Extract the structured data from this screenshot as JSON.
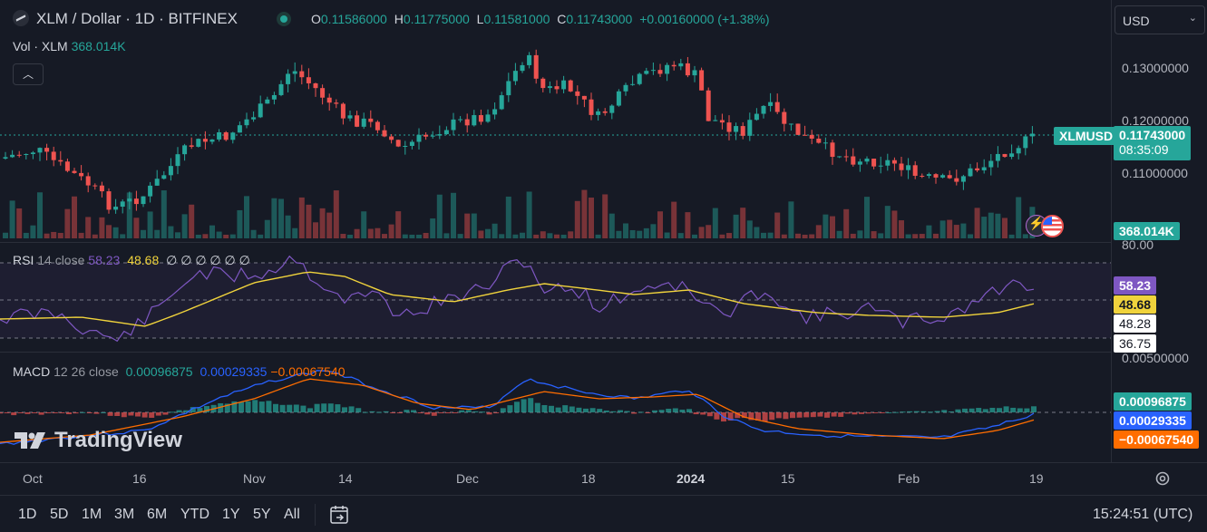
{
  "header": {
    "symbol_title": "XLM / Dollar · 1D · BITFINEX",
    "ohlc": {
      "o_label": "O",
      "o_value": "0.11586000",
      "h_label": "H",
      "h_value": "0.11775000",
      "l_label": "L",
      "l_value": "0.11581000",
      "c_label": "C",
      "c_value": "0.11743000",
      "change": "+0.00160000 (+1.38%)"
    },
    "volume_label": "Vol · XLM",
    "volume_value": "368.014K",
    "currency_selector": "USD"
  },
  "price_axis": {
    "ticks": [
      "0.13000000",
      "0.12000000",
      "0.11000000"
    ],
    "symbol_tag": "XLMUSD",
    "last_price": "0.11743000",
    "countdown": "08:35:09",
    "volume_tag": "368.014K"
  },
  "rsi": {
    "label": "RSI",
    "params": "14 close",
    "value": "58.23",
    "ma_value": "48.68",
    "placeholders": "∅ ∅ ∅ ∅ ∅ ∅",
    "axis_top": "80.00",
    "tag_rsi": "58.23",
    "tag_ma": "48.68",
    "tag_upper": "48.28",
    "tag_lower": "36.75"
  },
  "macd": {
    "label": "MACD",
    "params": "12 26 close",
    "histogram": "0.00096875",
    "macd_line": "0.00029335",
    "signal_line": "−0.00067540",
    "axis_top": "0.00500000",
    "tag_hist": "0.00096875",
    "tag_macd": "0.00029335",
    "tag_signal": "−0.00067540"
  },
  "time_axis": [
    "Oct",
    "16",
    "Nov",
    "14",
    "Dec",
    "18",
    "2024",
    "15",
    "Feb",
    "19"
  ],
  "ranges": [
    "1D",
    "5D",
    "1M",
    "3M",
    "6M",
    "YTD",
    "1Y",
    "5Y",
    "All"
  ],
  "clock": "15:24:51 (UTC)",
  "logo_text": "TradingView",
  "colors": {
    "up": "#26a69a",
    "down": "#ef5350",
    "rsi_line": "#7e57c2",
    "rsi_ma": "#f0d33c",
    "macd_line": "#2962ff",
    "signal_line": "#ff6d00",
    "background": "#161a25"
  }
}
